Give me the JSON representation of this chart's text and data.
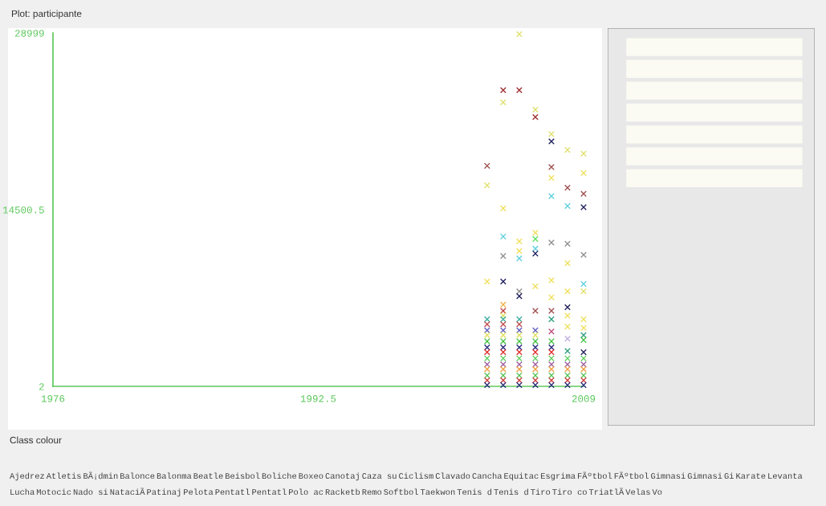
{
  "chart_data": {
    "type": "scatter",
    "title": "Plot: participante",
    "marker": "cross",
    "grid": false,
    "legend": false,
    "xlim": [
      1976,
      2009
    ],
    "xticks": [
      1976,
      1992.5,
      2009
    ],
    "ylim": [
      2,
      28999
    ],
    "yticks": [
      2,
      14500.5,
      28999
    ],
    "series": [
      {
        "x": [
          2003,
          2003,
          2003,
          2003,
          2003,
          2003,
          2003,
          2003,
          2003,
          2003,
          2003,
          2003,
          2003,
          2003,
          2003,
          2003
        ],
        "values": [
          18100,
          16500,
          8600,
          5500,
          5100,
          4600,
          4200,
          3700,
          3200,
          2800,
          2300,
          1800,
          1400,
          900,
          500,
          100
        ],
        "colors": [
          "#a05050",
          "#e0e070",
          "#f0e060",
          "#40b0a0",
          "#c05050",
          "#6060c0",
          "#e0e060",
          "#40c040",
          "#2a2a80",
          "#e03030",
          "#60d060",
          "#a060a0",
          "#f0a040",
          "#50c050",
          "#d04040",
          "#303080"
        ]
      },
      {
        "x": [
          2004,
          2004,
          2004,
          2004,
          2004,
          2004,
          2004,
          2004,
          2004,
          2004,
          2004,
          2004,
          2004,
          2004,
          2004,
          2004,
          2004,
          2004,
          2004,
          2004,
          2004,
          2004
        ],
        "values": [
          24300,
          23300,
          14600,
          12300,
          10700,
          8600,
          6700,
          6200,
          5800,
          5500,
          5100,
          4600,
          4200,
          3700,
          3200,
          2800,
          2300,
          1800,
          1400,
          900,
          500,
          100
        ],
        "colors": [
          "#a03030",
          "#e0e070",
          "#f0e060",
          "#60d0e0",
          "#909090",
          "#202060",
          "#f0b040",
          "#c04040",
          "#e0e060",
          "#40b0a0",
          "#c05050",
          "#6060c0",
          "#e0e060",
          "#40c040",
          "#2a2a80",
          "#e03030",
          "#60d060",
          "#a060a0",
          "#f0a040",
          "#50c050",
          "#d04040",
          "#303080"
        ]
      },
      {
        "x": [
          2005,
          2005,
          2005,
          2005,
          2005,
          2005,
          2005,
          2005,
          2005,
          2005,
          2005,
          2005,
          2005,
          2005,
          2005,
          2005,
          2005,
          2005,
          2005,
          2005
        ],
        "values": [
          28900,
          24300,
          11900,
          11100,
          10500,
          7800,
          7400,
          5500,
          5100,
          4600,
          4200,
          3700,
          3200,
          2800,
          2300,
          1800,
          1400,
          900,
          500,
          100
        ],
        "colors": [
          "#e0e070",
          "#a03030",
          "#f0e060",
          "#f0e060",
          "#60d0e0",
          "#909090",
          "#202060",
          "#40b0a0",
          "#c05050",
          "#6060c0",
          "#e0e060",
          "#40c040",
          "#2a2a80",
          "#e03030",
          "#60d060",
          "#a060a0",
          "#f0a040",
          "#50c050",
          "#d04040",
          "#303080"
        ]
      },
      {
        "x": [
          2006,
          2006,
          2006,
          2006,
          2006,
          2006,
          2006,
          2006,
          2006,
          2006,
          2006,
          2006,
          2006,
          2006,
          2006,
          2006,
          2006,
          2006,
          2006
        ],
        "values": [
          22700,
          22100,
          12600,
          12100,
          11300,
          10900,
          8200,
          6200,
          4600,
          4200,
          3700,
          3200,
          2800,
          2300,
          1800,
          1400,
          900,
          500,
          100
        ],
        "colors": [
          "#e0e070",
          "#a03030",
          "#f0e060",
          "#60e060",
          "#60d0e0",
          "#202060",
          "#f0e060",
          "#a05050",
          "#6060c0",
          "#e0e060",
          "#40c040",
          "#2a2a80",
          "#e03030",
          "#60d060",
          "#a060a0",
          "#f0a040",
          "#50c050",
          "#d04040",
          "#303080"
        ]
      },
      {
        "x": [
          2007,
          2007,
          2007,
          2007,
          2007,
          2007,
          2007,
          2007,
          2007,
          2007,
          2007,
          2007,
          2007,
          2007,
          2007,
          2007,
          2007,
          2007,
          2007,
          2007
        ],
        "values": [
          20700,
          20100,
          18000,
          17100,
          15600,
          11800,
          8700,
          7300,
          6200,
          5500,
          4500,
          3700,
          3200,
          2800,
          2300,
          1800,
          1400,
          900,
          500,
          100
        ],
        "colors": [
          "#e0e070",
          "#202060",
          "#a05050",
          "#f0e060",
          "#60d0e0",
          "#909090",
          "#f0e060",
          "#f0e060",
          "#a05050",
          "#30a080",
          "#c05080",
          "#40c040",
          "#2a2a80",
          "#e03030",
          "#60d060",
          "#a060a0",
          "#f0a040",
          "#50c050",
          "#d04040",
          "#303080"
        ]
      },
      {
        "x": [
          2008,
          2008,
          2008,
          2008,
          2008,
          2008,
          2008,
          2008,
          2008,
          2008,
          2008,
          2008,
          2008,
          2008,
          2008,
          2008,
          2008
        ],
        "values": [
          19400,
          16300,
          14800,
          11700,
          10100,
          7800,
          6500,
          5800,
          4900,
          3900,
          2900,
          2300,
          1800,
          1400,
          900,
          500,
          100
        ],
        "colors": [
          "#e0e070",
          "#a05050",
          "#60d0e0",
          "#909090",
          "#f0e060",
          "#f0e060",
          "#202060",
          "#f0e060",
          "#f0e060",
          "#c0b0e0",
          "#30a080",
          "#60d060",
          "#a060a0",
          "#f0a040",
          "#50c050",
          "#d04040",
          "#303080"
        ]
      },
      {
        "x": [
          2009,
          2009,
          2009,
          2009,
          2009,
          2009,
          2009,
          2009,
          2009,
          2009,
          2009,
          2009,
          2009,
          2009,
          2009,
          2009,
          2009,
          2009
        ],
        "values": [
          19100,
          17500,
          15800,
          14700,
          10800,
          8400,
          7800,
          5500,
          4800,
          4200,
          3800,
          2800,
          2300,
          1800,
          1400,
          900,
          500,
          100
        ],
        "colors": [
          "#e0e070",
          "#f0e060",
          "#a05050",
          "#202060",
          "#909090",
          "#60d0e0",
          "#e0e070",
          "#f0e060",
          "#f0e060",
          "#30a080",
          "#40c040",
          "#202060",
          "#60d060",
          "#a060a0",
          "#f0a040",
          "#50c050",
          "#d04040",
          "#303080"
        ]
      }
    ],
    "annotations": [
      "Class colour",
      "Ajedrez",
      "Atletis",
      "BÃ¡dmin",
      "Balonce",
      "Balonma",
      "Beatle",
      "Beisbol",
      "Boliche",
      "Boxeo",
      "Canotaj",
      "Caza su",
      "Ciclism",
      "Clavado",
      "Cancha",
      "Equitac",
      "Esgrima",
      "FÃºtbol",
      "FÃºtbol",
      "Gimnasi",
      "Gimnasi",
      "Gi",
      "Karate",
      "Levanta",
      "Lucha",
      "Motocic",
      "Nado si",
      "NataciÃ",
      "Patinaj",
      "Pelota",
      "Pentatl",
      "Pentatl",
      "Polo ac",
      "Racketb",
      "Remo",
      "Softbol",
      "Taekwon",
      "Tenis d",
      "Tenis d",
      "Tiro",
      "Tiro co",
      "TriatlÃ",
      "Velas",
      "Vo"
    ]
  }
}
